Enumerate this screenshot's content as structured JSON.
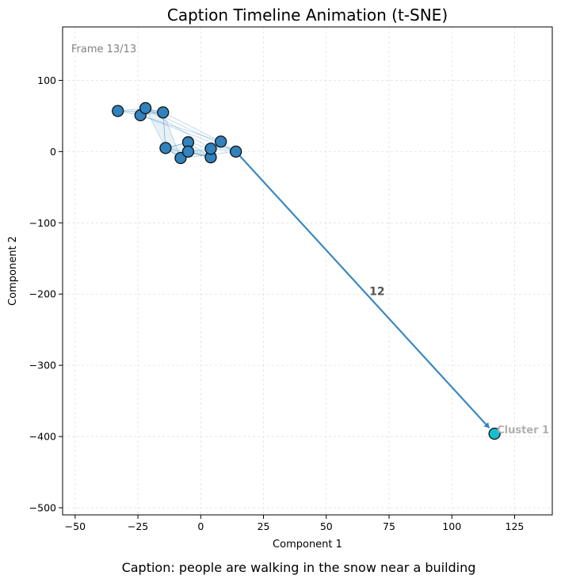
{
  "chart_data": {
    "type": "scatter",
    "title": "Caption Timeline Animation (t-SNE)",
    "xlabel": "Component 1",
    "ylabel": "Component 2",
    "xlim": [
      -55,
      140
    ],
    "ylim": [
      -510,
      175
    ],
    "xticks": [
      -50,
      -25,
      0,
      25,
      50,
      75,
      100,
      125
    ],
    "yticks": [
      100,
      0,
      -100,
      -200,
      -300,
      -400,
      -500
    ],
    "grid": true,
    "frame_label": "Frame 13/13",
    "caption": "Caption: people are walking in the snow near a building",
    "points": [
      {
        "x": -33,
        "y": 57
      },
      {
        "x": -24,
        "y": 51
      },
      {
        "x": -22,
        "y": 61
      },
      {
        "x": -15,
        "y": 55
      },
      {
        "x": -14,
        "y": 5
      },
      {
        "x": -8,
        "y": -9
      },
      {
        "x": -5,
        "y": 13
      },
      {
        "x": -5,
        "y": 0
      },
      {
        "x": 4,
        "y": -8
      },
      {
        "x": 4,
        "y": 4
      },
      {
        "x": 8,
        "y": 14
      },
      {
        "x": 14,
        "y": 0
      }
    ],
    "current_point": {
      "x": 117,
      "y": -396
    },
    "step_label": "12",
    "cluster_label": "Cluster 1",
    "colors": {
      "point": "#3182bd",
      "current": "#17becf",
      "path": "#3182bd",
      "hull": "#9ecae1"
    }
  }
}
